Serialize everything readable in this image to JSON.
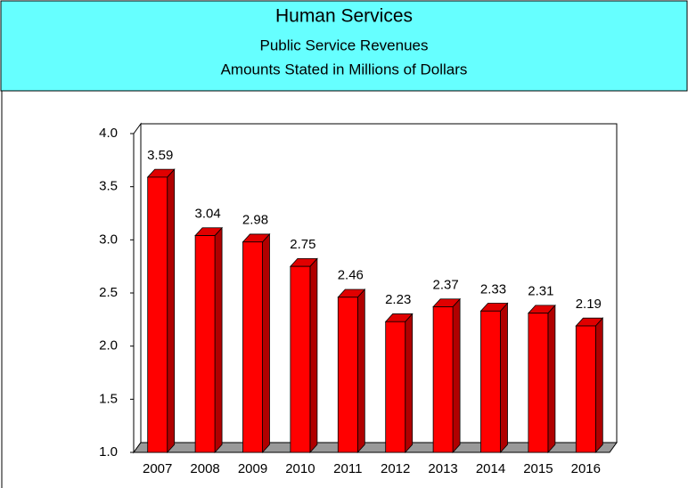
{
  "chart_data": {
    "type": "bar3d",
    "title": "Human Services",
    "subtitle": "Public Service Revenues",
    "note": "Amounts Stated in Millions of Dollars",
    "categories": [
      "2007",
      "2008",
      "2009",
      "2010",
      "2011",
      "2012",
      "2013",
      "2014",
      "2015",
      "2016"
    ],
    "values": [
      3.59,
      3.04,
      2.98,
      2.75,
      2.46,
      2.23,
      2.37,
      2.33,
      2.31,
      2.19
    ],
    "color": "#ff0000",
    "ylim": [
      1.0,
      4.0
    ],
    "yticks": [
      {
        "value": 1.0,
        "label": "1.0"
      },
      1.5,
      {
        "value": 2.0,
        "label": "2.0"
      },
      2.5,
      {
        "value": 3.0,
        "label": "3.0"
      },
      3.5,
      {
        "value": 4.0,
        "label": "4.0"
      }
    ]
  }
}
